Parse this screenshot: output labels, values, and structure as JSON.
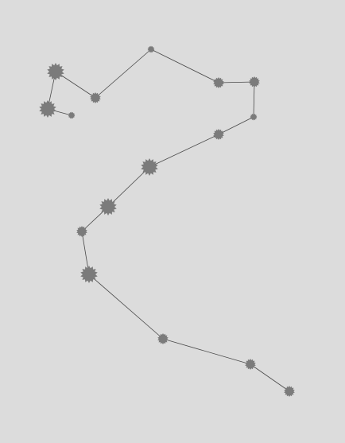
{
  "graph": {
    "type": "node-link path",
    "node_color": "#7b7b7b",
    "edge_color": "#4a4a4a",
    "background": "#dcdcdc",
    "nodes": [
      {
        "id": "n1",
        "shape": "star",
        "size": "large"
      },
      {
        "id": "n2",
        "shape": "star",
        "size": "large"
      },
      {
        "id": "n3",
        "shape": "star",
        "size": "small"
      },
      {
        "id": "n4",
        "shape": "star",
        "size": "medium"
      },
      {
        "id": "n5",
        "shape": "star",
        "size": "small"
      },
      {
        "id": "n6",
        "shape": "star",
        "size": "medium"
      },
      {
        "id": "n7",
        "shape": "star",
        "size": "medium"
      },
      {
        "id": "n8",
        "shape": "star",
        "size": "small"
      },
      {
        "id": "n9",
        "shape": "star",
        "size": "medium"
      },
      {
        "id": "n10",
        "shape": "star",
        "size": "large"
      },
      {
        "id": "n11",
        "shape": "star",
        "size": "large"
      },
      {
        "id": "n12",
        "shape": "star",
        "size": "medium"
      },
      {
        "id": "n13",
        "shape": "star",
        "size": "large"
      },
      {
        "id": "n14",
        "shape": "star",
        "size": "medium"
      },
      {
        "id": "n15",
        "shape": "star",
        "size": "medium"
      },
      {
        "id": "n16",
        "shape": "star",
        "size": "medium"
      }
    ],
    "edges": [
      [
        "n1",
        "n2"
      ],
      [
        "n2",
        "n3"
      ],
      [
        "n1",
        "n4"
      ],
      [
        "n4",
        "n5"
      ],
      [
        "n5",
        "n6"
      ],
      [
        "n6",
        "n7"
      ],
      [
        "n7",
        "n8"
      ],
      [
        "n8",
        "n9"
      ],
      [
        "n9",
        "n10"
      ],
      [
        "n10",
        "n11"
      ],
      [
        "n11",
        "n12"
      ],
      [
        "n12",
        "n13"
      ],
      [
        "n13",
        "n14"
      ],
      [
        "n14",
        "n15"
      ],
      [
        "n15",
        "n16"
      ]
    ]
  }
}
